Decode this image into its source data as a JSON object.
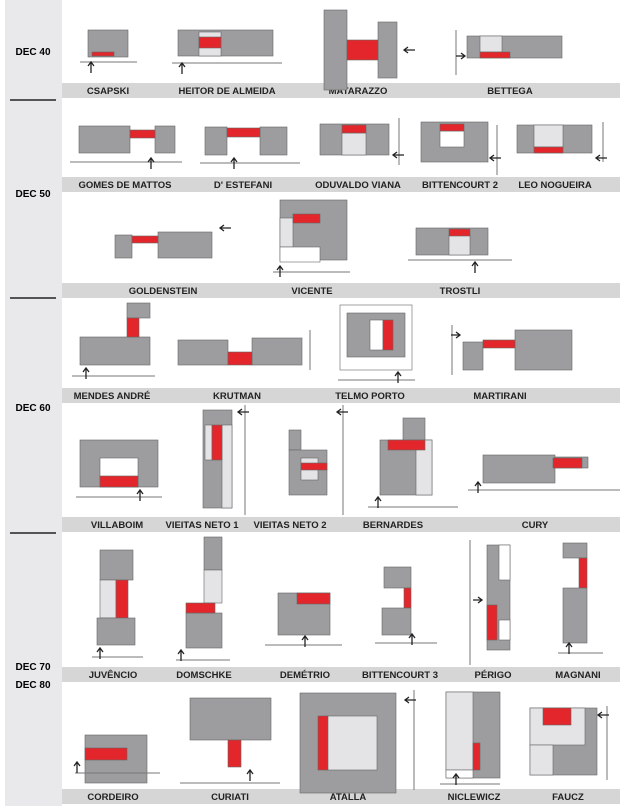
{
  "decades": [
    "DEC 40",
    "DEC 50",
    "DEC 60",
    "DEC 70",
    "DEC 80"
  ],
  "rows": [
    {
      "labels": [
        "CSAPSKI",
        "HEITOR DE ALMEIDA",
        "MATARAZZO",
        "BETTEGA"
      ]
    },
    {
      "labels": [
        "GOMES DE MATTOS",
        "D' ESTEFANI",
        "ODUVALDO VIANA",
        "BITTENCOURT 2",
        "LEO NOGUEIRA"
      ]
    },
    {
      "labels": [
        "GOLDENSTEIN",
        "VICENTE",
        "TROSTLI"
      ]
    },
    {
      "labels": [
        "MENDES ANDRÉ",
        "KRUTMAN",
        "TELMO PORTO",
        "MARTIRANI"
      ]
    },
    {
      "labels": [
        "VILLABOIM",
        "VIEITAS NETO 1",
        "VIEITAS NETO 2",
        "BERNARDES",
        "CURY"
      ]
    },
    {
      "labels": [
        "JUVÊNCIO",
        "DOMSCHKE",
        "DEMÉTRIO",
        "BITTENCOURT 3",
        "PÉRIGO",
        "MAGNANI"
      ]
    },
    {
      "labels": [
        "CORDEIRO",
        "CURIATI",
        "ATALLA",
        "NICLEWICZ",
        "FAUCZ"
      ]
    }
  ],
  "colors": {
    "built_mass": "#9d9d9f",
    "open_space": "#e4e4e6",
    "highlight": "#e3262b",
    "label_bar": "#d6d6d6",
    "sidebar": "#e9e9eb"
  }
}
